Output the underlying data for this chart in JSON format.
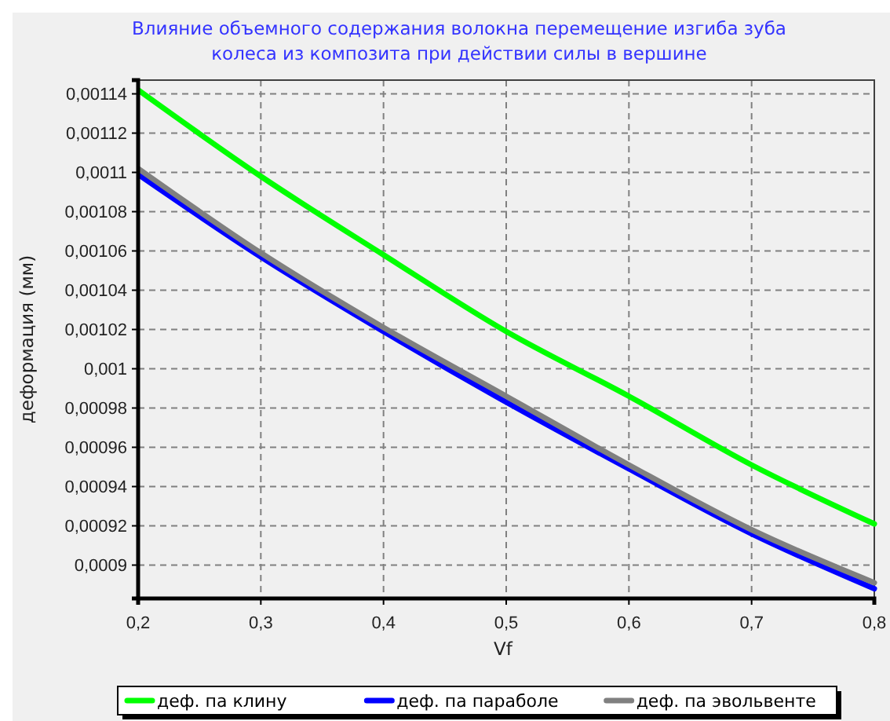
{
  "chart_data": {
    "type": "line",
    "title": "Влияние объемного содержания волокна перемещение изгиба зуба\nколеса из композита при действии силы в вершине",
    "xlabel": "Vf",
    "ylabel": "деформация (мм)",
    "x": [
      0.2,
      0.3,
      0.4,
      0.5,
      0.6,
      0.7,
      0.8
    ],
    "series": [
      {
        "name": "деф. па клину",
        "color": "#00ff00",
        "values": [
          0.001142,
          0.001098,
          0.001058,
          0.001019,
          0.000986,
          0.000951,
          0.000921
        ]
      },
      {
        "name": "деф. па параболе",
        "color": "#0000ff",
        "values": [
          0.001099,
          0.001057,
          0.001019,
          0.000983,
          0.000949,
          0.000916,
          0.000888
        ]
      },
      {
        "name": "деф. па эвольвенте",
        "color": "#808080",
        "values": [
          0.001102,
          0.001059,
          0.001021,
          0.000986,
          0.000951,
          0.000918,
          0.000891
        ]
      }
    ],
    "xlim": [
      0.2,
      0.8
    ],
    "xticks": [
      {
        "value": 0.2,
        "label": "0,2"
      },
      {
        "value": 0.3,
        "label": "0,3"
      },
      {
        "value": 0.4,
        "label": "0,4"
      },
      {
        "value": 0.5,
        "label": "0,5"
      },
      {
        "value": 0.6,
        "label": "0,6"
      },
      {
        "value": 0.7,
        "label": "0,7"
      },
      {
        "value": 0.8,
        "label": "0,8"
      }
    ],
    "ylim": [
      0.000883,
      0.001147
    ],
    "yticks": [
      {
        "value": 0.0009,
        "label": "0,0009"
      },
      {
        "value": 0.00092,
        "label": "0,00092"
      },
      {
        "value": 0.00094,
        "label": "0,00094"
      },
      {
        "value": 0.00096,
        "label": "0,00096"
      },
      {
        "value": 0.00098,
        "label": "0,00098"
      },
      {
        "value": 0.001,
        "label": "0,001"
      },
      {
        "value": 0.00102,
        "label": "0,00102"
      },
      {
        "value": 0.00104,
        "label": "0,00104"
      },
      {
        "value": 0.00106,
        "label": "0,00106"
      },
      {
        "value": 0.00108,
        "label": "0,00108"
      },
      {
        "value": 0.0011,
        "label": "0,0011"
      },
      {
        "value": 0.00112,
        "label": "0,00112"
      },
      {
        "value": 0.00114,
        "label": "0,00114"
      }
    ],
    "grid": true,
    "legend": "bottom",
    "marker": "none",
    "line_style": "solid"
  }
}
